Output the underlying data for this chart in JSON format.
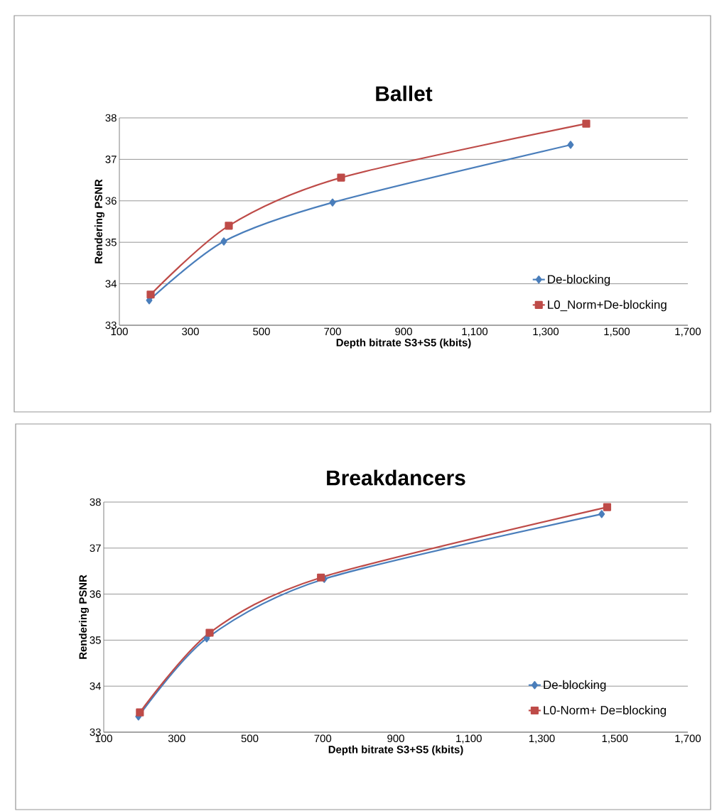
{
  "chart_data": [
    {
      "type": "line",
      "title": "Ballet",
      "xlabel": "Depth bitrate S3+S5 (kbits)",
      "ylabel": "Rendering PSNR",
      "series": [
        {
          "name": "De-blocking",
          "color": "#4a7ebb",
          "marker": "diamond",
          "x": [
            184,
            394,
            700,
            1370
          ],
          "values": [
            33.6,
            35.02,
            35.96,
            37.35
          ]
        },
        {
          "name": "L0_Norm+De-blocking",
          "color": "#be4b48",
          "marker": "square",
          "x": [
            188,
            408,
            724,
            1414
          ],
          "values": [
            33.74,
            35.4,
            36.56,
            37.86
          ]
        }
      ],
      "xlim": [
        100,
        1700
      ],
      "xticks": [
        100,
        300,
        500,
        700,
        900,
        {
          "value": 1100,
          "label": "1,100"
        },
        {
          "value": 1300,
          "label": "1,300"
        },
        {
          "value": 1500,
          "label": "1,500"
        },
        {
          "value": 1700,
          "label": "1,700"
        }
      ],
      "ylim": [
        33,
        38
      ],
      "yticks": [
        33,
        34,
        35,
        36,
        37,
        38
      ],
      "grid": "y",
      "legend": "bottom right"
    },
    {
      "type": "line",
      "title": "Breakdancers",
      "xlabel": "Depth bitrate S3+S5 (kbits)",
      "ylabel": "Rendering PSNR",
      "series": [
        {
          "name": "De-blocking",
          "color": "#4a7ebb",
          "marker": "diamond",
          "x": [
            195,
            382,
            704,
            1464
          ],
          "values": [
            33.34,
            35.04,
            36.33,
            37.74
          ]
        },
        {
          "name": "L0-Norm+ De=blocking",
          "color": "#be4b48",
          "marker": "square",
          "x": [
            199,
            390,
            695,
            1479
          ],
          "values": [
            33.43,
            35.16,
            36.36,
            37.89
          ]
        }
      ],
      "xlim": [
        100,
        1700
      ],
      "xticks": [
        100,
        300,
        500,
        700,
        900,
        {
          "value": 1100,
          "label": "1,100"
        },
        {
          "value": 1300,
          "label": "1,300"
        },
        {
          "value": 1500,
          "label": "1,500"
        },
        {
          "value": 1700,
          "label": "1,700"
        }
      ],
      "ylim": [
        33,
        38
      ],
      "yticks": [
        33,
        34,
        35,
        36,
        37,
        38
      ],
      "grid": "y",
      "legend": "bottom right"
    }
  ]
}
